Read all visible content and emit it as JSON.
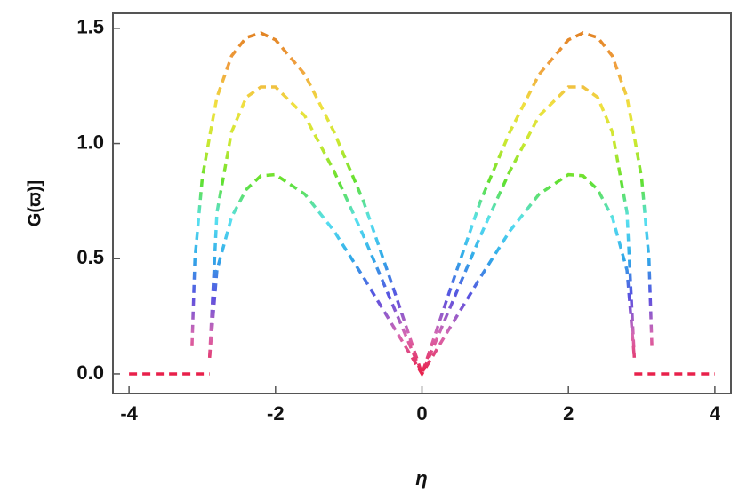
{
  "chart_data": {
    "type": "line",
    "xlabel": "η",
    "ylabel": "G(ϖ)]",
    "x": [
      -4,
      -3.14,
      -3.1,
      -3.0,
      -2.9,
      -2.8,
      -2.6,
      -2.4,
      -2.2,
      -2.0,
      -1.6,
      -1.2,
      -0.8,
      -0.4,
      0,
      0.4,
      0.8,
      1.2,
      1.6,
      2.0,
      2.2,
      2.4,
      2.6,
      2.8,
      2.9,
      3.0,
      3.1,
      3.14,
      4
    ],
    "series": [
      {
        "values": [
          null,
          0.12,
          0.5,
          0.85,
          1.03,
          1.2,
          1.38,
          1.46,
          1.48,
          1.45,
          1.3,
          1.05,
          0.75,
          0.38,
          0,
          0.38,
          0.75,
          1.05,
          1.3,
          1.45,
          1.48,
          1.46,
          1.38,
          1.2,
          1.03,
          0.85,
          0.5,
          0.12,
          null
        ]
      },
      {
        "values": [
          null,
          null,
          null,
          null,
          0.07,
          0.7,
          1.05,
          1.2,
          1.245,
          1.245,
          1.12,
          0.88,
          0.6,
          0.3,
          0,
          0.3,
          0.6,
          0.88,
          1.12,
          1.245,
          1.245,
          1.2,
          1.05,
          0.7,
          0.07,
          null,
          null,
          null,
          null
        ]
      },
      {
        "values": [
          null,
          null,
          null,
          null,
          0.07,
          0.45,
          0.68,
          0.8,
          0.86,
          0.865,
          0.78,
          0.62,
          0.42,
          0.21,
          0,
          0.21,
          0.42,
          0.62,
          0.78,
          0.865,
          0.86,
          0.8,
          0.68,
          0.45,
          0.07,
          null,
          null,
          null,
          null
        ]
      },
      {
        "x": [
          -4,
          -2.9,
          0,
          2.9,
          4
        ],
        "values": [
          0,
          0,
          null,
          0,
          0
        ]
      }
    ],
    "colormap": [
      "#e8204a",
      "#d868b0",
      "#5a50e0",
      "#30a8e8",
      "#58e0f0",
      "#60e030",
      "#c8e830",
      "#f0e040",
      "#f0a040",
      "#e08020"
    ],
    "dashed": true,
    "xlim": [
      -4.22,
      4.22
    ],
    "ylim": [
      -0.085,
      1.565
    ],
    "xticks": [
      -4,
      -2,
      0,
      2,
      4
    ],
    "yticks": [
      {
        "value": 0,
        "label": "0.0"
      },
      {
        "value": 0.5,
        "label": "0.5"
      },
      {
        "value": 1,
        "label": "1.0"
      },
      {
        "value": 1.5,
        "label": "1.5"
      }
    ]
  }
}
